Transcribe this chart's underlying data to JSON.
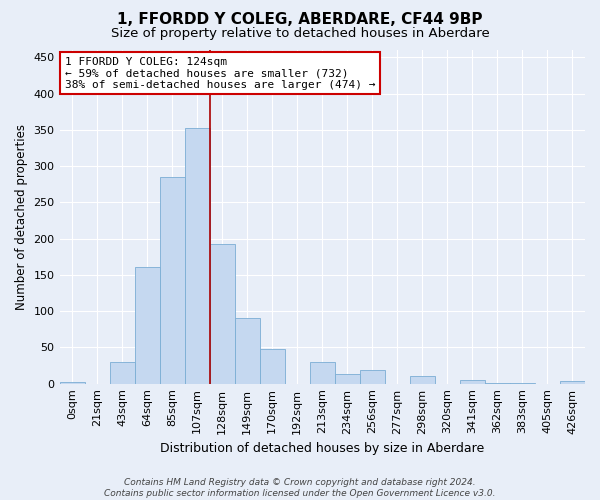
{
  "title": "1, FFORDD Y COLEG, ABERDARE, CF44 9BP",
  "subtitle": "Size of property relative to detached houses in Aberdare",
  "xlabel": "Distribution of detached houses by size in Aberdare",
  "ylabel": "Number of detached properties",
  "categories": [
    "0sqm",
    "21sqm",
    "43sqm",
    "64sqm",
    "85sqm",
    "107sqm",
    "128sqm",
    "149sqm",
    "170sqm",
    "192sqm",
    "213sqm",
    "234sqm",
    "256sqm",
    "277sqm",
    "298sqm",
    "320sqm",
    "341sqm",
    "362sqm",
    "383sqm",
    "405sqm",
    "426sqm"
  ],
  "values": [
    3,
    0,
    30,
    161,
    285,
    352,
    192,
    90,
    48,
    0,
    30,
    14,
    19,
    0,
    10,
    0,
    5,
    1,
    1,
    0,
    4
  ],
  "bar_color": "#c5d8f0",
  "bar_edge_color": "#7aadd4",
  "background_color": "#e8eef8",
  "grid_color": "#ffffff",
  "vline_x_index": 6,
  "vline_color": "#aa0000",
  "annotation_text": "1 FFORDD Y COLEG: 124sqm\n← 59% of detached houses are smaller (732)\n38% of semi-detached houses are larger (474) →",
  "annotation_box_color": "#ffffff",
  "annotation_box_edge": "#cc0000",
  "footer": "Contains HM Land Registry data © Crown copyright and database right 2024.\nContains public sector information licensed under the Open Government Licence v3.0.",
  "ylim": [
    0,
    460
  ],
  "yticks": [
    0,
    50,
    100,
    150,
    200,
    250,
    300,
    350,
    400,
    450
  ],
  "title_fontsize": 11,
  "subtitle_fontsize": 9.5,
  "xlabel_fontsize": 9,
  "ylabel_fontsize": 8.5,
  "tick_fontsize": 8,
  "annotation_fontsize": 8,
  "footer_fontsize": 6.5
}
